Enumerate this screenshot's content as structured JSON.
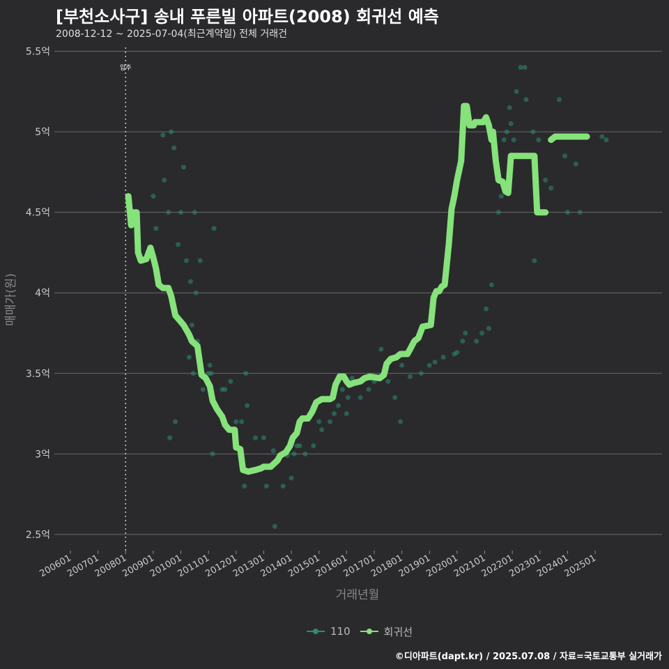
{
  "header": {
    "title": "[부천소사구] 송내 푸른빌 아파트(2008) 회귀선 예측",
    "subtitle": "2008-12-12 ~ 2025-07-04(최근계약일) 전체 거래건"
  },
  "caption": "©디아파트(dapt.kr) / 2025.07.08 / 자료=국토교통부 실거래가",
  "colors": {
    "background": "#2a2a2c",
    "grid": "#6b6b6b",
    "scatter": "#2e8b73",
    "regression": "#86e27a",
    "text": "#cccccc"
  },
  "legend": [
    {
      "label": "110",
      "color": "#2e8b73"
    },
    {
      "label": "회귀선",
      "color": "#86e27a"
    }
  ],
  "chart_data": {
    "type": "scatter",
    "title": "[부천소사구] 송내 푸른빌 아파트(2008) 회귀선 예측",
    "xlabel": "거래년월",
    "ylabel": "매매가(원)",
    "xlim": [
      2005.42,
      2027.42
    ],
    "ylim": [
      2.4,
      5.55
    ],
    "y_ticks": [
      2.5,
      3,
      3.5,
      4,
      4.5,
      5,
      5.5
    ],
    "y_tick_labels": [
      "2.5억",
      "3억",
      "3.5억",
      "4억",
      "4.5억",
      "5억",
      "5.5억"
    ],
    "x_ticks": [
      2006,
      2007,
      2008,
      2009,
      2010,
      2011,
      2012,
      2013,
      2014,
      2015,
      2016,
      2017,
      2018,
      2019,
      2020,
      2021,
      2022,
      2023,
      2024,
      2025
    ],
    "x_tick_labels": [
      "200601",
      "200701",
      "200801",
      "200901",
      "201001",
      "201101",
      "201201",
      "201301",
      "201401",
      "201501",
      "201601",
      "201701",
      "201801",
      "201901",
      "202001",
      "202101",
      "202201",
      "202301",
      "202401",
      "202501"
    ],
    "annotation": {
      "label": "입주",
      "x": 2008.0
    },
    "series": [
      {
        "name": "110",
        "type": "scatter",
        "points": [
          [
            2009.0,
            4.6
          ],
          [
            2009.1,
            4.4
          ],
          [
            2009.35,
            4.98
          ],
          [
            2009.4,
            4.7
          ],
          [
            2009.55,
            4.5
          ],
          [
            2009.6,
            3.1
          ],
          [
            2009.65,
            5.0
          ],
          [
            2009.75,
            4.9
          ],
          [
            2009.8,
            3.2
          ],
          [
            2009.9,
            4.3
          ],
          [
            2010.0,
            4.5
          ],
          [
            2010.1,
            4.78
          ],
          [
            2010.2,
            4.2
          ],
          [
            2010.3,
            3.6
          ],
          [
            2010.35,
            4.07
          ],
          [
            2010.4,
            3.8
          ],
          [
            2010.45,
            3.5
          ],
          [
            2010.5,
            4.5
          ],
          [
            2010.55,
            4.0
          ],
          [
            2010.6,
            3.7
          ],
          [
            2010.7,
            4.2
          ],
          [
            2010.75,
            3.5
          ],
          [
            2010.8,
            3.4
          ],
          [
            2011.0,
            3.5
          ],
          [
            2011.05,
            3.55
          ],
          [
            2011.1,
            3.5
          ],
          [
            2011.15,
            3.0
          ],
          [
            2011.2,
            4.4
          ],
          [
            2011.5,
            3.4
          ],
          [
            2011.6,
            3.4
          ],
          [
            2011.8,
            3.45
          ],
          [
            2012.0,
            3.2
          ],
          [
            2012.2,
            3.2
          ],
          [
            2012.3,
            2.8
          ],
          [
            2012.35,
            3.5
          ],
          [
            2012.4,
            3.3
          ],
          [
            2012.7,
            3.1
          ],
          [
            2013.0,
            3.1
          ],
          [
            2013.1,
            2.8
          ],
          [
            2013.35,
            3.02
          ],
          [
            2013.4,
            2.55
          ],
          [
            2013.7,
            2.8
          ],
          [
            2013.85,
            2.99
          ],
          [
            2014.0,
            2.85
          ],
          [
            2014.1,
            3.0
          ],
          [
            2014.2,
            3.05
          ],
          [
            2014.3,
            3.05
          ],
          [
            2014.5,
            3.0
          ],
          [
            2014.8,
            3.05
          ],
          [
            2015.0,
            3.2
          ],
          [
            2015.1,
            3.15
          ],
          [
            2015.4,
            3.2
          ],
          [
            2015.55,
            3.25
          ],
          [
            2015.7,
            3.3
          ],
          [
            2015.85,
            3.4
          ],
          [
            2016.0,
            3.25
          ],
          [
            2016.05,
            3.35
          ],
          [
            2016.2,
            3.47
          ],
          [
            2016.5,
            3.35
          ],
          [
            2016.8,
            3.4
          ],
          [
            2017.0,
            3.45
          ],
          [
            2017.25,
            3.65
          ],
          [
            2017.5,
            3.45
          ],
          [
            2017.75,
            3.35
          ],
          [
            2017.95,
            3.2
          ],
          [
            2018.0,
            3.55
          ],
          [
            2018.3,
            3.48
          ],
          [
            2018.7,
            3.5
          ],
          [
            2019.0,
            3.55
          ],
          [
            2019.2,
            3.57
          ],
          [
            2019.5,
            3.6
          ],
          [
            2019.9,
            3.62
          ],
          [
            2020.0,
            3.63
          ],
          [
            2020.2,
            3.7
          ],
          [
            2020.3,
            3.75
          ],
          [
            2020.7,
            3.7
          ],
          [
            2020.9,
            3.75
          ],
          [
            2021.05,
            3.9
          ],
          [
            2021.15,
            3.78
          ],
          [
            2021.25,
            4.05
          ],
          [
            2021.5,
            4.5
          ],
          [
            2021.6,
            4.6
          ],
          [
            2021.7,
            4.95
          ],
          [
            2021.8,
            5.0
          ],
          [
            2021.9,
            5.15
          ],
          [
            2021.95,
            5.05
          ],
          [
            2022.05,
            4.95
          ],
          [
            2022.15,
            5.25
          ],
          [
            2022.3,
            5.4
          ],
          [
            2022.45,
            5.4
          ],
          [
            2022.5,
            5.2
          ],
          [
            2022.75,
            5.0
          ],
          [
            2022.8,
            4.2
          ],
          [
            2022.95,
            4.95
          ],
          [
            2023.2,
            4.7
          ],
          [
            2023.4,
            4.65
          ],
          [
            2023.7,
            5.2
          ],
          [
            2023.9,
            4.85
          ],
          [
            2024.0,
            4.5
          ],
          [
            2024.3,
            4.8
          ],
          [
            2024.45,
            4.5
          ],
          [
            2025.25,
            4.97
          ],
          [
            2025.4,
            4.95
          ]
        ]
      },
      {
        "name": "회귀선",
        "type": "line",
        "segments": [
          [
            [
              2008.1,
              4.6
            ],
            [
              2008.2,
              4.42
            ],
            [
              2008.28,
              4.48
            ],
            [
              2008.3,
              4.5
            ],
            [
              2008.4,
              4.5
            ],
            [
              2008.45,
              4.25
            ],
            [
              2008.55,
              4.2
            ],
            [
              2008.75,
              4.21
            ],
            [
              2008.9,
              4.28
            ],
            [
              2009.0,
              4.22
            ],
            [
              2009.1,
              4.15
            ],
            [
              2009.2,
              4.05
            ],
            [
              2009.35,
              4.03
            ],
            [
              2009.55,
              4.03
            ],
            [
              2009.65,
              3.98
            ],
            [
              2009.8,
              3.86
            ],
            [
              2009.9,
              3.84
            ],
            [
              2010.1,
              3.8
            ],
            [
              2010.3,
              3.74
            ],
            [
              2010.4,
              3.7
            ],
            [
              2010.6,
              3.67
            ],
            [
              2010.75,
              3.49
            ],
            [
              2010.9,
              3.47
            ],
            [
              2011.05,
              3.42
            ],
            [
              2011.15,
              3.33
            ],
            [
              2011.3,
              3.28
            ],
            [
              2011.5,
              3.23
            ],
            [
              2011.6,
              3.18
            ],
            [
              2011.75,
              3.15
            ],
            [
              2011.95,
              3.15
            ],
            [
              2012.0,
              3.04
            ],
            [
              2012.15,
              3.03
            ],
            [
              2012.25,
              2.9
            ],
            [
              2012.45,
              2.89
            ],
            [
              2012.7,
              2.9
            ],
            [
              2012.9,
              2.91
            ],
            [
              2013.0,
              2.92
            ],
            [
              2013.25,
              2.92
            ],
            [
              2013.5,
              2.96
            ],
            [
              2013.6,
              2.99
            ],
            [
              2013.8,
              3.01
            ],
            [
              2013.95,
              3.05
            ],
            [
              2014.05,
              3.1
            ],
            [
              2014.2,
              3.13
            ],
            [
              2014.3,
              3.2
            ],
            [
              2014.4,
              3.22
            ],
            [
              2014.6,
              3.22
            ],
            [
              2014.75,
              3.26
            ],
            [
              2014.9,
              3.32
            ],
            [
              2015.1,
              3.34
            ],
            [
              2015.4,
              3.34
            ],
            [
              2015.5,
              3.35
            ],
            [
              2015.6,
              3.43
            ],
            [
              2015.75,
              3.48
            ],
            [
              2015.9,
              3.48
            ],
            [
              2016.0,
              3.45
            ],
            [
              2016.1,
              3.43
            ],
            [
              2016.25,
              3.44
            ],
            [
              2016.5,
              3.45
            ],
            [
              2016.65,
              3.47
            ],
            [
              2016.85,
              3.48
            ],
            [
              2017.2,
              3.47
            ],
            [
              2017.35,
              3.49
            ],
            [
              2017.45,
              3.56
            ],
            [
              2017.6,
              3.59
            ],
            [
              2017.8,
              3.6
            ],
            [
              2017.95,
              3.62
            ],
            [
              2018.2,
              3.62
            ],
            [
              2018.3,
              3.65
            ],
            [
              2018.45,
              3.7
            ],
            [
              2018.6,
              3.72
            ],
            [
              2018.75,
              3.79
            ],
            [
              2019.05,
              3.8
            ],
            [
              2019.15,
              3.97
            ],
            [
              2019.25,
              4.01
            ],
            [
              2019.35,
              4.01
            ],
            [
              2019.45,
              4.04
            ],
            [
              2019.55,
              4.05
            ],
            [
              2019.7,
              4.3
            ],
            [
              2019.8,
              4.52
            ],
            [
              2019.9,
              4.6
            ],
            [
              2020.0,
              4.7
            ],
            [
              2020.15,
              4.82
            ],
            [
              2020.25,
              5.16
            ],
            [
              2020.35,
              5.16
            ],
            [
              2020.45,
              5.04
            ],
            [
              2020.6,
              5.04
            ],
            [
              2020.65,
              5.06
            ],
            [
              2020.85,
              5.06
            ],
            [
              2020.95,
              5.06
            ],
            [
              2021.05,
              5.09
            ],
            [
              2021.15,
              5.04
            ],
            [
              2021.25,
              4.95
            ],
            [
              2021.3,
              5.0
            ],
            [
              2021.4,
              4.82
            ],
            [
              2021.5,
              4.7
            ],
            [
              2021.65,
              4.69
            ],
            [
              2021.75,
              4.63
            ],
            [
              2021.85,
              4.62
            ],
            [
              2021.95,
              4.85
            ],
            [
              2022.35,
              4.85
            ],
            [
              2022.65,
              4.85
            ],
            [
              2022.8,
              4.85
            ],
            [
              2022.9,
              4.5
            ],
            [
              2023.2,
              4.5
            ]
          ],
          [
            [
              2023.4,
              4.95
            ],
            [
              2023.55,
              4.97
            ],
            [
              2024.0,
              4.97
            ],
            [
              2024.5,
              4.97
            ],
            [
              2024.7,
              4.97
            ]
          ]
        ]
      }
    ]
  }
}
